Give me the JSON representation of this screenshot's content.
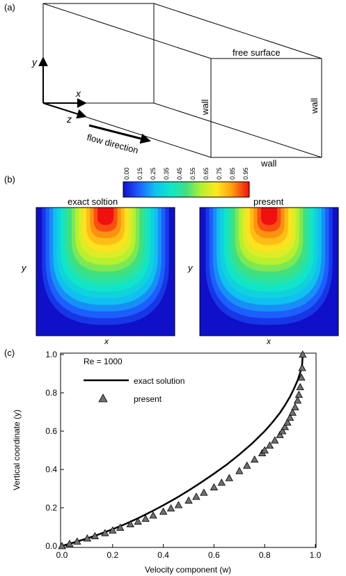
{
  "panel_a": {
    "tag": "(a)",
    "axis_y": "y",
    "axis_x": "x",
    "axis_z": "z",
    "flow_label": "flow direction",
    "free_surface": "free surface",
    "wall_left": "wall",
    "wall_right": "wall",
    "wall_bottom": "wall"
  },
  "panel_b": {
    "tag": "(b)",
    "colorbar_ticks": [
      "0.00",
      "0.15",
      "0.25",
      "0.35",
      "0.45",
      "0.55",
      "0.65",
      "0.75",
      "0.85",
      "0.95"
    ],
    "left_title": "exact soltion",
    "right_title": "present",
    "ylabel_left": "y",
    "xlabel_left": "x",
    "ylabel_right": "y",
    "xlabel_right": "x"
  },
  "panel_c": {
    "tag": "(c)"
  },
  "chart_data": {
    "type": "scatter",
    "annotation": "Re = 1000",
    "xlabel": "Velocity component (w)",
    "ylabel": "Vertical coordinate (y)",
    "xlim": [
      0,
      1
    ],
    "ylim": [
      0,
      1
    ],
    "x_ticks": [
      "0.0",
      "0.2",
      "0.4",
      "0.6",
      "0.8",
      "1.0"
    ],
    "y_ticks": [
      "0.0",
      "0.2",
      "0.4",
      "0.6",
      "0.8",
      "1.0"
    ],
    "legend": [
      {
        "name": "exact solution",
        "style": "line"
      },
      {
        "name": "present",
        "style": "triangle"
      }
    ],
    "series": [
      {
        "name": "exact solution",
        "x": [
          0.0,
          0.05,
          0.1,
          0.15,
          0.2,
          0.25,
          0.3,
          0.35,
          0.4,
          0.45,
          0.5,
          0.55,
          0.6,
          0.65,
          0.7,
          0.75,
          0.8,
          0.83,
          0.86,
          0.88,
          0.9,
          0.915,
          0.93,
          0.94,
          0.948,
          0.95
        ],
        "y": [
          0.0,
          0.02,
          0.04,
          0.063,
          0.088,
          0.115,
          0.145,
          0.178,
          0.213,
          0.25,
          0.29,
          0.333,
          0.378,
          0.425,
          0.478,
          0.535,
          0.6,
          0.645,
          0.695,
          0.735,
          0.78,
          0.82,
          0.865,
          0.905,
          0.95,
          1.0
        ]
      },
      {
        "name": "present",
        "x": [
          0.0,
          0.03,
          0.06,
          0.1,
          0.13,
          0.17,
          0.2,
          0.23,
          0.27,
          0.3,
          0.33,
          0.36,
          0.4,
          0.43,
          0.46,
          0.5,
          0.53,
          0.56,
          0.6,
          0.63,
          0.66,
          0.7,
          0.73,
          0.76,
          0.79,
          0.8,
          0.82,
          0.84,
          0.86,
          0.87,
          0.88,
          0.89,
          0.9,
          0.91,
          0.92,
          0.93,
          0.935,
          0.94,
          0.945,
          0.948,
          0.95
        ],
        "y": [
          0.0,
          0.012,
          0.024,
          0.04,
          0.052,
          0.068,
          0.082,
          0.096,
          0.114,
          0.128,
          0.143,
          0.16,
          0.18,
          0.197,
          0.214,
          0.238,
          0.258,
          0.279,
          0.307,
          0.331,
          0.355,
          0.392,
          0.42,
          0.452,
          0.485,
          0.5,
          0.525,
          0.552,
          0.58,
          0.6,
          0.622,
          0.645,
          0.67,
          0.697,
          0.725,
          0.76,
          0.79,
          0.83,
          0.88,
          0.93,
          1.0
        ]
      }
    ]
  }
}
